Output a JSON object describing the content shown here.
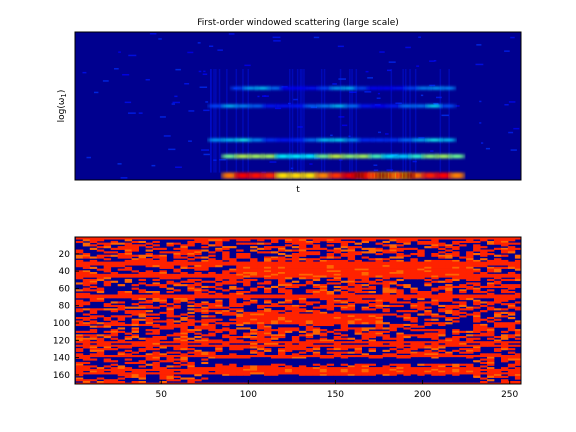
{
  "chart_data": [
    {
      "type": "heatmap",
      "title": "First-order windowed scattering (large scale)",
      "xlabel": "t",
      "ylabel": "log(ω1)",
      "ylabel_base": "log(ω",
      "ylabel_sub": "1",
      "ylabel_close": ")",
      "xticks": [],
      "yticks": [],
      "colormap": [
        "#00008f",
        "#0000ff",
        "#00ffff",
        "#ffff00",
        "#ff0000",
        "#800000"
      ],
      "background": "#00008f",
      "features": [
        {
          "description": "energy band",
          "row_fraction": 0.97,
          "t_range": [
            0.33,
            0.87
          ],
          "intensity": 0.75
        },
        {
          "description": "peak",
          "row_fraction": 0.97,
          "t_range": [
            0.62,
            0.76
          ],
          "intensity": 0.95
        },
        {
          "description": "band",
          "row_fraction": 0.84,
          "t_range": [
            0.33,
            0.87
          ],
          "intensity": 0.45
        },
        {
          "description": "band",
          "row_fraction": 0.73,
          "t_range": [
            0.3,
            0.85
          ],
          "intensity": 0.25
        },
        {
          "description": "band",
          "row_fraction": 0.5,
          "t_range": [
            0.3,
            0.85
          ],
          "intensity": 0.2
        },
        {
          "description": "band",
          "row_fraction": 0.38,
          "t_range": [
            0.35,
            0.85
          ],
          "intensity": 0.18
        }
      ]
    },
    {
      "type": "heatmap",
      "title": "",
      "xlabel": "",
      "ylabel": "",
      "xlim": [
        1,
        256
      ],
      "ylim": [
        1,
        170
      ],
      "xticks": [
        50,
        100,
        150,
        200,
        250
      ],
      "yticks": [
        20,
        40,
        60,
        80,
        100,
        120,
        140,
        160
      ],
      "y_reversed": true,
      "colors": {
        "low": "#00008f",
        "mid": "#ff2200",
        "high": "#ff6600"
      },
      "features": [
        {
          "description": "red band",
          "y_range": [
            33,
            45
          ],
          "x_range": [
            90,
            225
          ]
        },
        {
          "description": "red band",
          "y_range": [
            88,
            100
          ],
          "x_range": [
            90,
            175
          ]
        },
        {
          "description": "blue band",
          "y_range": [
            140,
            146
          ],
          "x_range": [
            75,
            225
          ]
        },
        {
          "description": "red band",
          "y_range": [
            150,
            158
          ],
          "x_range": [
            80,
            225
          ]
        },
        {
          "description": "blue band",
          "y_range": [
            160,
            168
          ],
          "x_range": [
            75,
            225
          ]
        }
      ]
    }
  ]
}
